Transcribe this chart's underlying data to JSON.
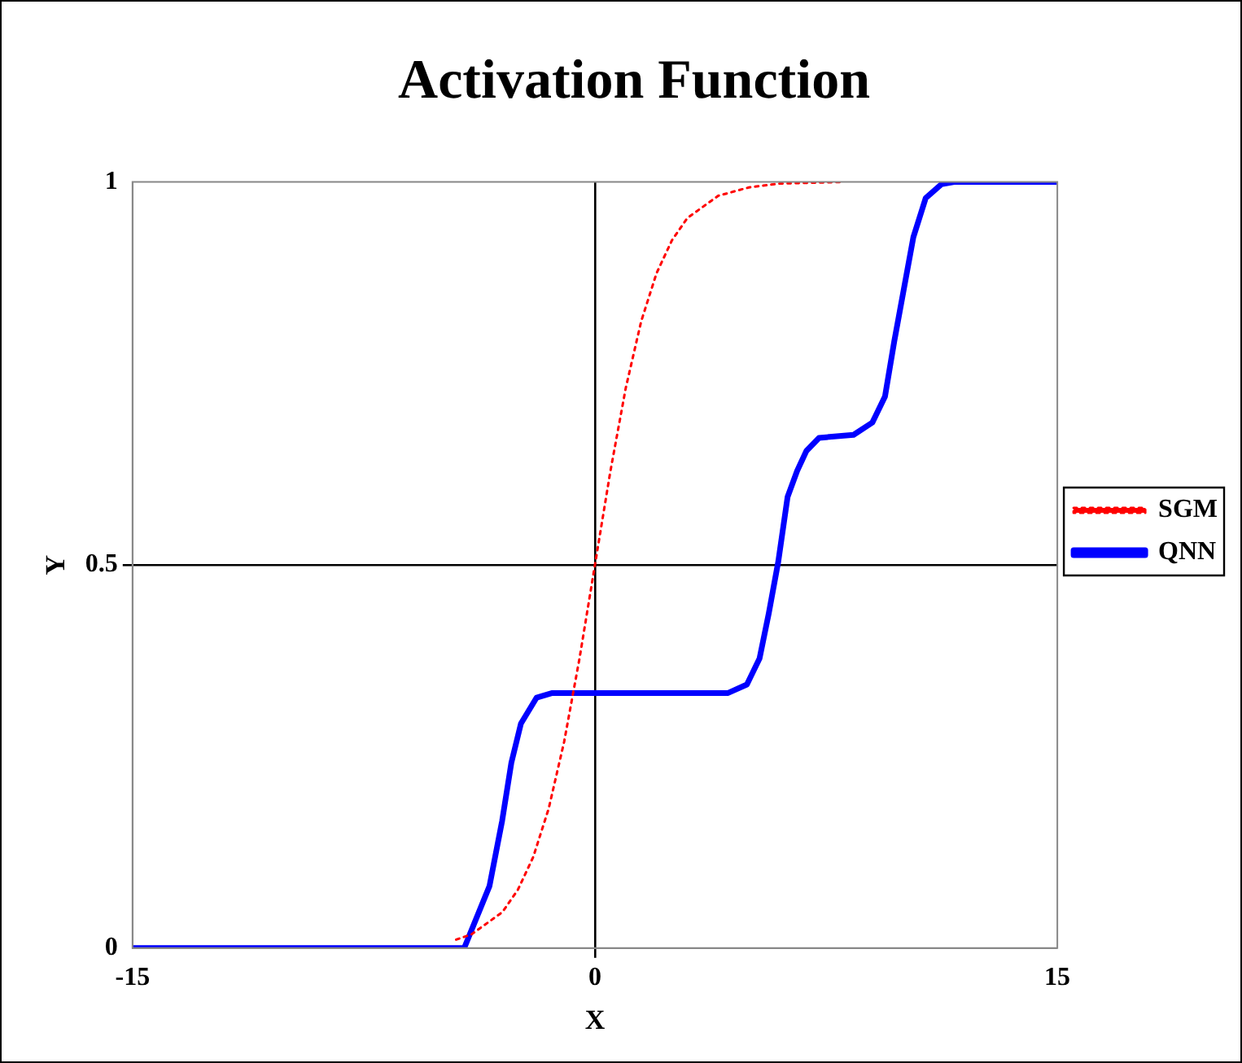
{
  "chart_data": {
    "type": "line",
    "title": "Activation Function",
    "xlabel": "X",
    "ylabel": "Y",
    "xlim": [
      -15,
      15
    ],
    "xticks": [
      -15,
      0,
      15
    ],
    "ylim": [
      0,
      1
    ],
    "yticks": [
      0,
      0.5,
      1
    ],
    "grid": true,
    "legend": "right",
    "marker": "none",
    "series": [
      {
        "name": "SGM",
        "color": "#ff0000",
        "line_style": "dotted",
        "x": [
          -4.5,
          -4,
          -3,
          -2.5,
          -2,
          -1.5,
          -1,
          -0.5,
          0,
          0.5,
          1,
          1.5,
          2,
          2.5,
          3,
          4,
          5,
          6,
          8
        ],
        "values": [
          0.011,
          0.018,
          0.047,
          0.076,
          0.119,
          0.182,
          0.269,
          0.378,
          0.5,
          0.622,
          0.731,
          0.818,
          0.881,
          0.924,
          0.953,
          0.982,
          0.993,
          0.998,
          1
        ]
      },
      {
        "name": "QNN",
        "color": "#0000ff",
        "line_style": "solid",
        "x": [
          -15,
          -4.24,
          -3.42,
          -3.01,
          -2.71,
          -2.4,
          -1.89,
          -1.38,
          4.32,
          4.93,
          5.34,
          5.64,
          5.95,
          6.25,
          6.56,
          6.86,
          7.27,
          8.39,
          9.0,
          9.41,
          9.71,
          10.02,
          10.33,
          10.73,
          11.24,
          11.65,
          15
        ],
        "values": [
          0,
          0,
          0.081,
          0.166,
          0.242,
          0.293,
          0.327,
          0.333,
          0.333,
          0.344,
          0.378,
          0.437,
          0.505,
          0.589,
          0.623,
          0.649,
          0.666,
          0.67,
          0.686,
          0.72,
          0.792,
          0.86,
          0.928,
          0.979,
          0.997,
          1,
          1
        ]
      }
    ]
  }
}
